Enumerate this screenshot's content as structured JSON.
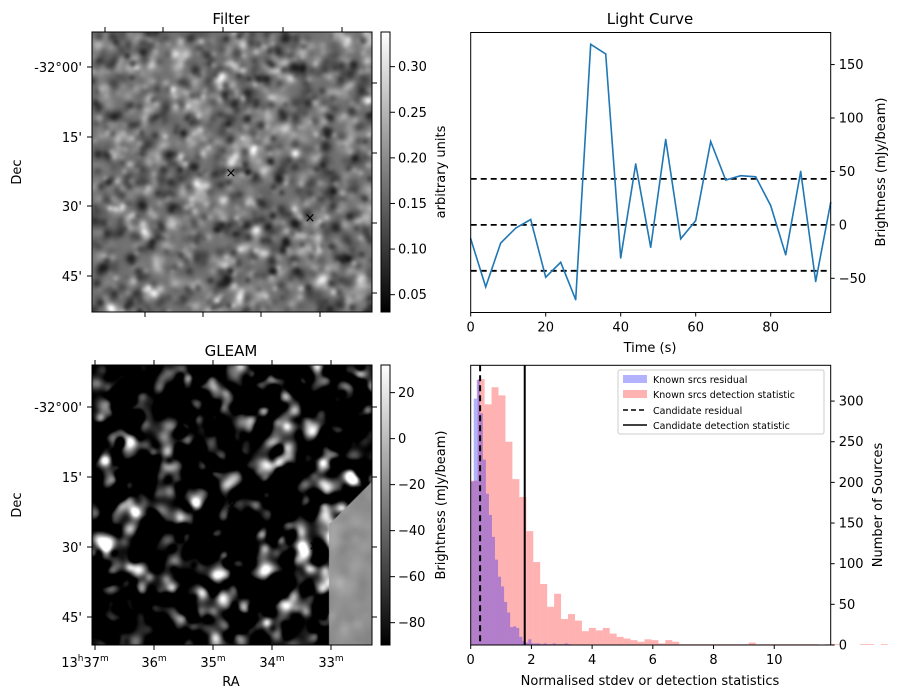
{
  "figure": {
    "panels": {
      "filter": {
        "title": "Filter",
        "ylabel": "Dec",
        "dec_ticks": [
          "-32°00'",
          "15'",
          "30'",
          "45'"
        ],
        "colorbar": {
          "label": "arbitrary units",
          "range": [
            0.031,
            0.338
          ],
          "ticks": [
            0.05,
            0.1,
            0.15,
            0.2,
            0.25,
            0.3
          ],
          "tick_labels": [
            "0.05",
            "0.10",
            "0.15",
            "0.20",
            "0.25",
            "0.30"
          ]
        },
        "markers": [
          {
            "name": "candidate",
            "symbol": "×",
            "color": "#ff0000"
          },
          {
            "name": "reference",
            "symbol": "×",
            "color": "#0000ff"
          }
        ]
      },
      "gleam": {
        "title": "GLEAM",
        "ylabel": "Dec",
        "xlabel": "RA",
        "dec_ticks": [
          "-32°00'",
          "15'",
          "30'",
          "45'"
        ],
        "ra_ticks": [
          {
            "h": "13",
            "m": "37"
          },
          {
            "h": "",
            "m": "36"
          },
          {
            "h": "",
            "m": "35"
          },
          {
            "h": "",
            "m": "34"
          },
          {
            "h": "",
            "m": "33"
          }
        ],
        "colorbar": {
          "label": "Brightness (mJy/beam)",
          "range": [
            -89.7,
            32
          ],
          "ticks": [
            -80,
            -60,
            -40,
            -20,
            0,
            20
          ],
          "tick_labels": [
            "−80",
            "−60",
            "−40",
            "−20",
            "0",
            "20"
          ]
        },
        "markers": [
          {
            "name": "candidate",
            "symbol": "×",
            "color": "#ff0000"
          },
          {
            "name": "reference",
            "symbol": "×",
            "color": "#0000ff"
          }
        ]
      }
    }
  },
  "chart_data": [
    {
      "type": "line",
      "title": "Light Curve",
      "xlabel": "Time (s)",
      "ylabel": "Brightness (mJy/beam)",
      "xlim": [
        0,
        96
      ],
      "ylim": [
        -82,
        180
      ],
      "xticks": [
        0,
        20,
        40,
        60,
        80
      ],
      "yticks": [
        -50,
        0,
        50,
        100,
        150
      ],
      "ytick_labels": [
        "−50",
        "0",
        "50",
        "100",
        "150"
      ],
      "yaxis_side": "right",
      "grid": false,
      "series": [
        {
          "name": "light curve",
          "color": "#1f77b4",
          "x": [
            0,
            4,
            8,
            12,
            16,
            20,
            24,
            28,
            32,
            36,
            40,
            44,
            48,
            52,
            56,
            60,
            64,
            68,
            72,
            76,
            80,
            84,
            88,
            92,
            96
          ],
          "y": [
            -13,
            -58,
            -17,
            -3,
            5,
            -49,
            -35,
            -70,
            169,
            160,
            -31,
            57,
            -21,
            80,
            -13,
            4,
            78,
            42,
            46,
            45,
            18,
            -28,
            50,
            -53,
            21
          ]
        }
      ],
      "hlines": [
        {
          "y": 43,
          "style": "dashed",
          "color": "#000000"
        },
        {
          "y": 0,
          "style": "dashed",
          "color": "#000000"
        },
        {
          "y": -43,
          "style": "dashed",
          "color": "#000000"
        }
      ]
    },
    {
      "type": "bar",
      "subtype": "histogram",
      "title": "",
      "xlabel": "Normalised stdev or detection statistics",
      "ylabel": "Number of Sources",
      "xlim": [
        0,
        11.86
      ],
      "ylim": [
        0,
        344
      ],
      "xticks": [
        0,
        2,
        4,
        6,
        8,
        10
      ],
      "yticks": [
        0,
        50,
        100,
        150,
        200,
        250,
        300
      ],
      "yaxis_side": "right",
      "legend": {
        "position": "top-right",
        "entries": [
          {
            "label": "Known srcs residual",
            "kind": "patch",
            "color": "#0000ff",
            "alpha": 0.3
          },
          {
            "label": "Known srcs detection statistic",
            "kind": "patch",
            "color": "#ff0000",
            "alpha": 0.3
          },
          {
            "label": "Candidate residual",
            "kind": "line",
            "style": "dashed",
            "color": "#000000"
          },
          {
            "label": "Candidate detection statistic",
            "kind": "line",
            "style": "solid",
            "color": "#000000"
          }
        ]
      },
      "series": [
        {
          "name": "Known srcs residual",
          "color": "#0000ff",
          "alpha": 0.3,
          "bin_start": 0,
          "bin_width": 0.1,
          "counts": [
            201,
            303,
            326,
            285,
            228,
            186,
            160,
            133,
            105,
            84,
            72,
            53,
            40,
            22,
            23,
            21,
            10,
            5,
            3,
            7,
            2,
            2,
            2,
            1,
            2,
            1,
            1,
            2,
            1,
            1,
            1,
            2,
            1
          ]
        },
        {
          "name": "Known srcs detection statistic",
          "color": "#ff0000",
          "alpha": 0.3,
          "bin_start": 0,
          "bin_width": 0.229,
          "counts": [
            202,
            327,
            296,
            317,
            307,
            250,
            204,
            182,
            140,
            102,
            75,
            47,
            63,
            32,
            38,
            30,
            17,
            21,
            18,
            21,
            14,
            10,
            8,
            6,
            4,
            7,
            6,
            2,
            6,
            4,
            1,
            1,
            1,
            1,
            1,
            1,
            1,
            1,
            1,
            1,
            3,
            1,
            1,
            1,
            1,
            1,
            1,
            1,
            1,
            1,
            0,
            1,
            1,
            0,
            0,
            0,
            1,
            1,
            0,
            1
          ]
        }
      ],
      "vlines": [
        {
          "label": "Candidate residual",
          "x": 0.31,
          "style": "dashed"
        },
        {
          "label": "Candidate detection statistic",
          "x": 1.78,
          "style": "solid"
        }
      ]
    }
  ]
}
